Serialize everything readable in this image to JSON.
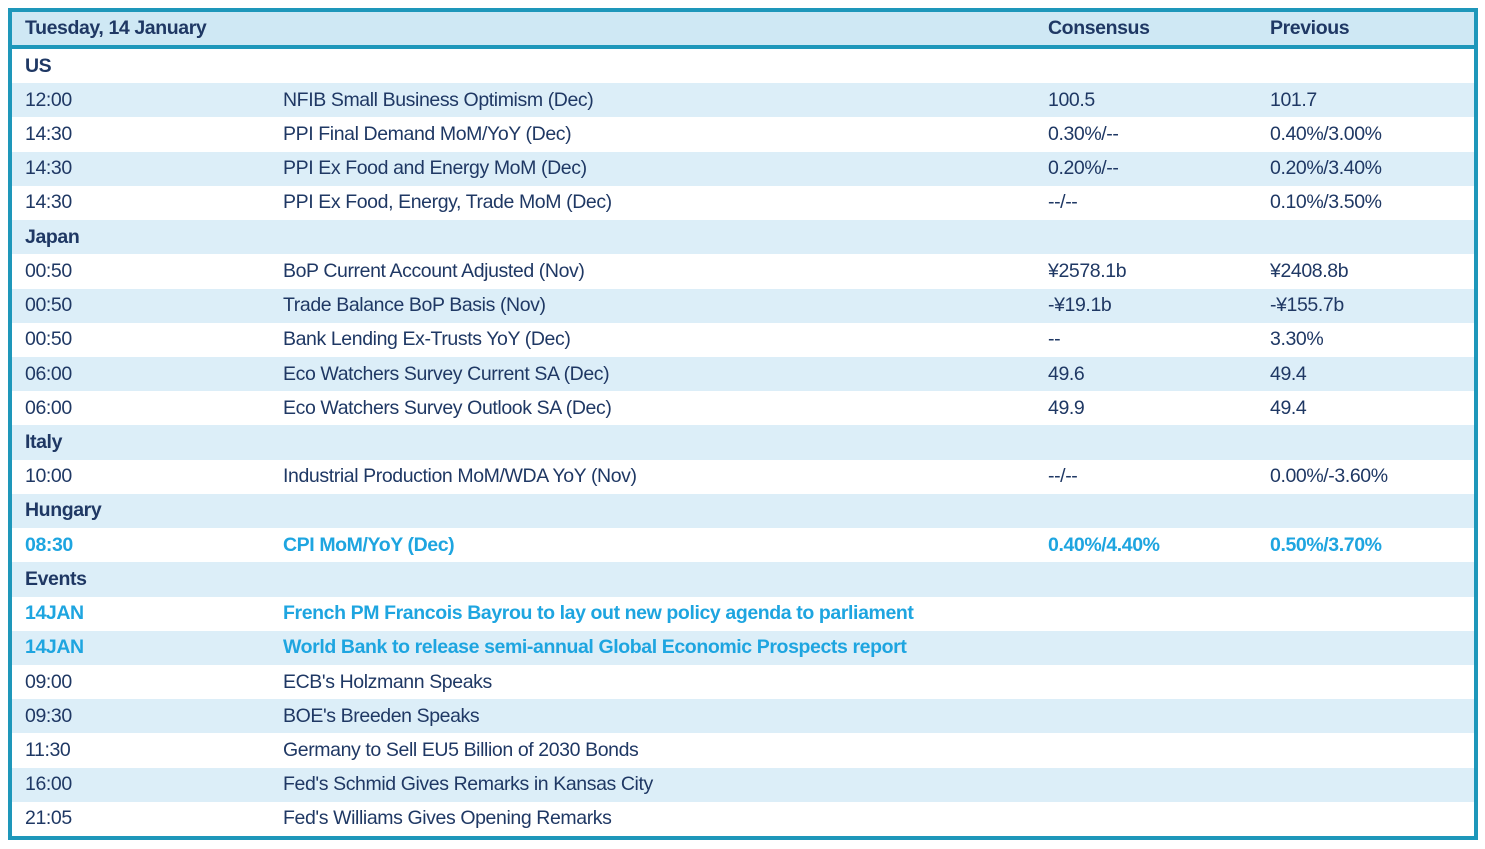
{
  "colors": {
    "border_teal": "#1e97ba",
    "header_bg": "#cfe8f4",
    "stripe_bg": "#dceef8",
    "text_navy": "#1f3864",
    "highlight_cyan": "#1ea5e0"
  },
  "header": {
    "date_label": "Tuesday, 14 January",
    "consensus_label": "Consensus",
    "previous_label": "Previous"
  },
  "rows": [
    {
      "type": "section",
      "label": "US"
    },
    {
      "type": "data",
      "time": "12:00",
      "event": "NFIB Small Business Optimism (Dec)",
      "consensus": "100.5",
      "previous": "101.7",
      "highlight": false
    },
    {
      "type": "data",
      "time": "14:30",
      "event": "PPI Final Demand MoM/YoY (Dec)",
      "consensus": "0.30%/--",
      "previous": "0.40%/3.00%",
      "highlight": false
    },
    {
      "type": "data",
      "time": "14:30",
      "event": "PPI Ex Food and Energy MoM (Dec)",
      "consensus": "0.20%/--",
      "previous": "0.20%/3.40%",
      "highlight": false
    },
    {
      "type": "data",
      "time": "14:30",
      "event": "PPI Ex Food, Energy, Trade MoM (Dec)",
      "consensus": "--/--",
      "previous": "0.10%/3.50%",
      "highlight": false
    },
    {
      "type": "section",
      "label": "Japan"
    },
    {
      "type": "data",
      "time": "00:50",
      "event": "BoP Current Account Adjusted (Nov)",
      "consensus": "¥2578.1b",
      "previous": "¥2408.8b",
      "highlight": false
    },
    {
      "type": "data",
      "time": "00:50",
      "event": "Trade Balance BoP Basis (Nov)",
      "consensus": "-¥19.1b",
      "previous": "-¥155.7b",
      "highlight": false
    },
    {
      "type": "data",
      "time": "00:50",
      "event": "Bank Lending Ex-Trusts YoY (Dec)",
      "consensus": "--",
      "previous": "3.30%",
      "highlight": false
    },
    {
      "type": "data",
      "time": "06:00",
      "event": "Eco Watchers Survey Current SA (Dec)",
      "consensus": "49.6",
      "previous": "49.4",
      "highlight": false
    },
    {
      "type": "data",
      "time": "06:00",
      "event": "Eco Watchers Survey Outlook SA (Dec)",
      "consensus": "49.9",
      "previous": "49.4",
      "highlight": false
    },
    {
      "type": "section",
      "label": "Italy"
    },
    {
      "type": "data",
      "time": "10:00",
      "event": "Industrial Production MoM/WDA YoY (Nov)",
      "consensus": "--/--",
      "previous": "0.00%/-3.60%",
      "highlight": false
    },
    {
      "type": "section",
      "label": "Hungary"
    },
    {
      "type": "data",
      "time": "08:30",
      "event": "CPI MoM/YoY (Dec)",
      "consensus": "0.40%/4.40%",
      "previous": "0.50%/3.70%",
      "highlight": true
    },
    {
      "type": "section",
      "label": "Events"
    },
    {
      "type": "data",
      "time": "14JAN",
      "event": "French PM Francois Bayrou to lay out new policy agenda to parliament",
      "consensus": "",
      "previous": "",
      "highlight": true
    },
    {
      "type": "data",
      "time": "14JAN",
      "event": "World Bank to release semi-annual Global Economic Prospects report",
      "consensus": "",
      "previous": "",
      "highlight": true
    },
    {
      "type": "data",
      "time": "09:00",
      "event": "ECB's Holzmann Speaks",
      "consensus": "",
      "previous": "",
      "highlight": false
    },
    {
      "type": "data",
      "time": "09:30",
      "event": "BOE's Breeden Speaks",
      "consensus": "",
      "previous": "",
      "highlight": false
    },
    {
      "type": "data",
      "time": "11:30",
      "event": "Germany to Sell EU5 Billion of 2030 Bonds",
      "consensus": "",
      "previous": "",
      "highlight": false
    },
    {
      "type": "data",
      "time": "16:00",
      "event": "Fed's Schmid Gives Remarks in Kansas City",
      "consensus": "",
      "previous": "",
      "highlight": false
    },
    {
      "type": "data",
      "time": "21:05",
      "event": "Fed's Williams Gives Opening Remarks",
      "consensus": "",
      "previous": "",
      "highlight": false
    }
  ]
}
